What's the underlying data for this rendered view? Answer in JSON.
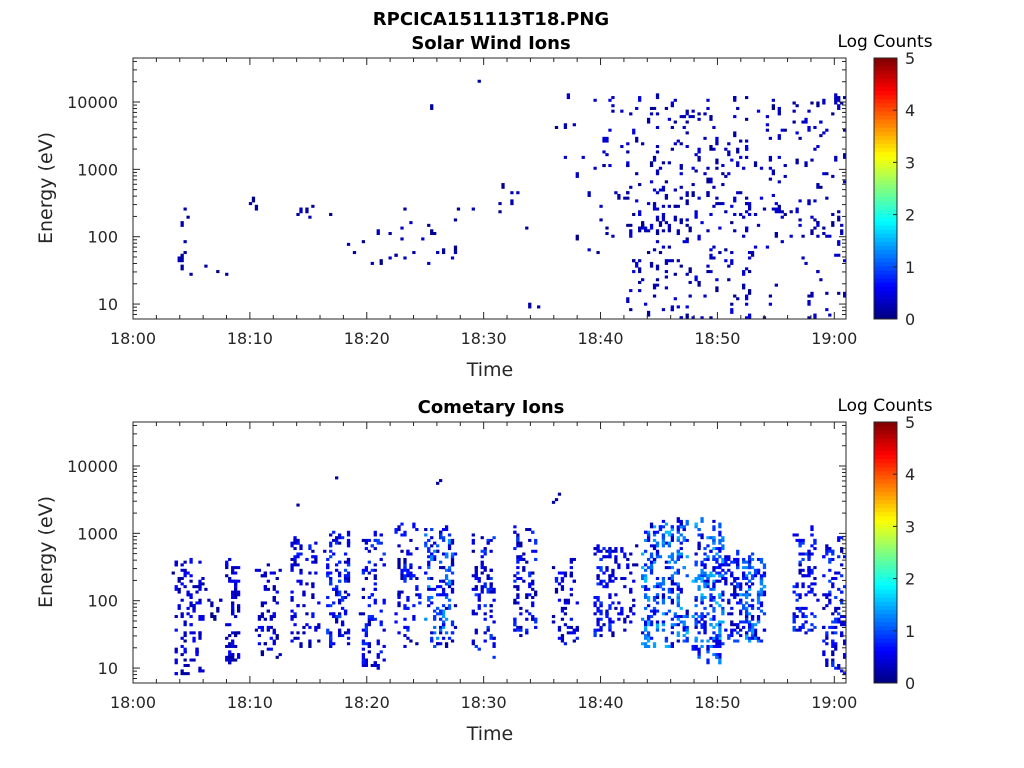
{
  "figure": {
    "title": "RPCICA151113T18.PNG"
  },
  "chart_data": [
    {
      "type": "heatmap",
      "title": "Solar Wind Ions",
      "xlabel": "Time",
      "ylabel": "Energy (eV)",
      "x_ticks": [
        "18:00",
        "18:10",
        "18:20",
        "18:30",
        "18:40",
        "18:50",
        "19:00"
      ],
      "y_ticks": [
        "10",
        "100",
        "1000",
        "10000"
      ],
      "xlim_minutes": [
        0,
        61
      ],
      "ylim": [
        6,
        45000
      ],
      "yscale": "log",
      "colorbar": {
        "label": "Log Counts",
        "ticks": [
          "0",
          "1",
          "2",
          "3",
          "4",
          "5"
        ],
        "range": [
          0,
          5
        ],
        "colormap": "jet"
      },
      "seed": 11,
      "regions": [
        {
          "t": [
            4,
            5
          ],
          "e": [
            25,
            300
          ],
          "n": 10,
          "v": [
            0.05,
            0.3
          ]
        },
        {
          "t": [
            5,
            9
          ],
          "e": [
            25,
            40
          ],
          "n": 3,
          "v": [
            0.05,
            0.2
          ]
        },
        {
          "t": [
            10,
            11
          ],
          "e": [
            250,
            350
          ],
          "n": 3,
          "v": [
            0.05,
            0.2
          ]
        },
        {
          "t": [
            14,
            18
          ],
          "e": [
            150,
            300
          ],
          "n": 6,
          "v": [
            0.05,
            0.3
          ]
        },
        {
          "t": [
            18,
            21
          ],
          "e": [
            40,
            200
          ],
          "n": 5,
          "v": [
            0.05,
            0.3
          ]
        },
        {
          "t": [
            21,
            25
          ],
          "e": [
            40,
            300
          ],
          "n": 12,
          "v": [
            0.05,
            0.4
          ]
        },
        {
          "t": [
            25,
            26
          ],
          "e": [
            8000,
            9000
          ],
          "n": 1,
          "v": [
            0.1,
            0.2
          ]
        },
        {
          "t": [
            25,
            28
          ],
          "e": [
            40,
            500
          ],
          "n": 12,
          "v": [
            0.05,
            0.4
          ]
        },
        {
          "t": [
            29,
            30
          ],
          "e": [
            19000,
            21000
          ],
          "n": 1,
          "v": [
            0.1,
            0.2
          ]
        },
        {
          "t": [
            29,
            34
          ],
          "e": [
            40,
            600
          ],
          "n": 8,
          "v": [
            0.05,
            0.3
          ]
        },
        {
          "t": [
            34,
            35
          ],
          "e": [
            6,
            12
          ],
          "n": 2,
          "v": [
            0.1,
            0.2
          ]
        },
        {
          "t": [
            35,
            40
          ],
          "e": [
            40,
            12000
          ],
          "n": 14,
          "v": [
            0.05,
            0.4
          ]
        },
        {
          "t": [
            40,
            52
          ],
          "e": [
            100,
            12000
          ],
          "n": 170,
          "v": [
            0.05,
            0.5
          ]
        },
        {
          "t": [
            42,
            53
          ],
          "e": [
            6,
            400
          ],
          "n": 120,
          "v": [
            0.05,
            0.5
          ]
        },
        {
          "t": [
            52,
            61
          ],
          "e": [
            100,
            12000
          ],
          "n": 110,
          "v": [
            0.05,
            0.5
          ]
        },
        {
          "t": [
            52,
            61
          ],
          "e": [
            6,
            300
          ],
          "n": 50,
          "v": [
            0.05,
            0.5
          ]
        }
      ]
    },
    {
      "type": "heatmap",
      "title": "Cometary Ions",
      "xlabel": "Time",
      "ylabel": "Energy (eV)",
      "x_ticks": [
        "18:00",
        "18:10",
        "18:20",
        "18:30",
        "18:40",
        "18:50",
        "19:00"
      ],
      "y_ticks": [
        "10",
        "100",
        "1000",
        "10000"
      ],
      "xlim_minutes": [
        0,
        61
      ],
      "ylim": [
        6,
        45000
      ],
      "yscale": "log",
      "colorbar": {
        "label": "Log Counts",
        "ticks": [
          "0",
          "1",
          "2",
          "3",
          "4",
          "5"
        ],
        "range": [
          0,
          5
        ],
        "colormap": "jet"
      },
      "seed": 29,
      "regions": [
        {
          "t": [
            3.5,
            6
          ],
          "e": [
            8,
            400
          ],
          "n": 90,
          "v": [
            0.1,
            0.7
          ]
        },
        {
          "t": [
            6,
            7.5
          ],
          "e": [
            50,
            150
          ],
          "n": 8,
          "v": [
            0.05,
            0.3
          ]
        },
        {
          "t": [
            8,
            9
          ],
          "e": [
            12,
            400
          ],
          "n": 60,
          "v": [
            0.1,
            0.7
          ]
        },
        {
          "t": [
            10.5,
            12.5
          ],
          "e": [
            15,
            350
          ],
          "n": 55,
          "v": [
            0.1,
            0.7
          ]
        },
        {
          "t": [
            13.5,
            14.5
          ],
          "e": [
            2200,
            2600
          ],
          "n": 1,
          "v": [
            0.1,
            0.2
          ]
        },
        {
          "t": [
            13.5,
            16
          ],
          "e": [
            20,
            1000
          ],
          "n": 70,
          "v": [
            0.1,
            0.8
          ]
        },
        {
          "t": [
            16.5,
            18.5
          ],
          "e": [
            20,
            1100
          ],
          "n": 95,
          "v": [
            0.15,
            1.0
          ]
        },
        {
          "t": [
            17,
            17.5
          ],
          "e": [
            6000,
            7000
          ],
          "n": 1,
          "v": [
            0.1,
            0.2
          ]
        },
        {
          "t": [
            19.5,
            21.5
          ],
          "e": [
            10,
            1000
          ],
          "n": 85,
          "v": [
            0.15,
            1.0
          ]
        },
        {
          "t": [
            22.5,
            24.5
          ],
          "e": [
            20,
            1500
          ],
          "n": 70,
          "v": [
            0.1,
            0.9
          ]
        },
        {
          "t": [
            25,
            27.5
          ],
          "e": [
            20,
            1200
          ],
          "n": 130,
          "v": [
            0.15,
            1.4
          ]
        },
        {
          "t": [
            25.5,
            27
          ],
          "e": [
            5500,
            6500
          ],
          "n": 2,
          "v": [
            0.1,
            0.2
          ]
        },
        {
          "t": [
            29,
            31
          ],
          "e": [
            15,
            1000
          ],
          "n": 75,
          "v": [
            0.15,
            1.0
          ]
        },
        {
          "t": [
            32.5,
            34.5
          ],
          "e": [
            30,
            1500
          ],
          "n": 75,
          "v": [
            0.1,
            0.9
          ]
        },
        {
          "t": [
            36,
            36.5
          ],
          "e": [
            2500,
            5000
          ],
          "n": 3,
          "v": [
            0.1,
            0.2
          ]
        },
        {
          "t": [
            36,
            38
          ],
          "e": [
            20,
            400
          ],
          "n": 55,
          "v": [
            0.1,
            0.8
          ]
        },
        {
          "t": [
            39.5,
            41
          ],
          "e": [
            30,
            600
          ],
          "n": 70,
          "v": [
            0.15,
            1.0
          ]
        },
        {
          "t": [
            41,
            43
          ],
          "e": [
            30,
            700
          ],
          "n": 45,
          "v": [
            0.1,
            0.7
          ]
        },
        {
          "t": [
            43.5,
            47.5
          ],
          "e": [
            20,
            1500
          ],
          "n": 230,
          "v": [
            0.3,
            1.6
          ]
        },
        {
          "t": [
            48,
            50.5
          ],
          "e": [
            12,
            1500
          ],
          "n": 190,
          "v": [
            0.3,
            1.6
          ]
        },
        {
          "t": [
            50.5,
            52
          ],
          "e": [
            25,
            500
          ],
          "n": 70,
          "v": [
            0.15,
            1.0
          ]
        },
        {
          "t": [
            52,
            54
          ],
          "e": [
            25,
            500
          ],
          "n": 110,
          "v": [
            0.3,
            1.5
          ]
        },
        {
          "t": [
            56.5,
            58.5
          ],
          "e": [
            30,
            1100
          ],
          "n": 85,
          "v": [
            0.15,
            1.0
          ]
        },
        {
          "t": [
            59,
            61
          ],
          "e": [
            8,
            1000
          ],
          "n": 95,
          "v": [
            0.15,
            1.0
          ]
        }
      ]
    }
  ]
}
